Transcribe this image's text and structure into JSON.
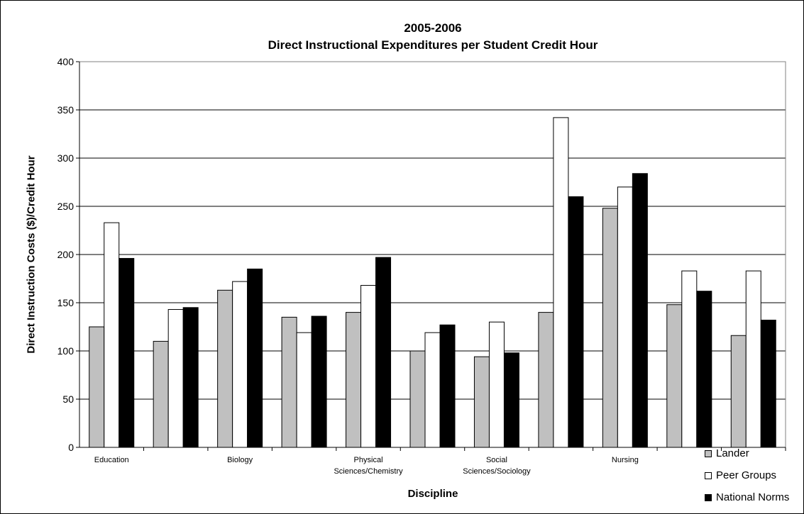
{
  "chart_data": {
    "type": "bar",
    "title_line1": "2005-2006",
    "title_line2": "Direct Instructional Expenditures per Student Credit Hour",
    "xlabel": "Discipline",
    "ylabel": "Direct Instruction Costs ($)/Credit Hour",
    "ylim": [
      0,
      400
    ],
    "yticks": [
      "0",
      "50",
      "100",
      "150",
      "200",
      "250",
      "300",
      "350",
      "400"
    ],
    "grid": true,
    "legend_position": "bottom-right",
    "categories": [
      [
        "Education"
      ],
      [
        ""
      ],
      [
        "Biology"
      ],
      [
        ""
      ],
      [
        "Physical",
        "Sciences/Chemistry"
      ],
      [
        ""
      ],
      [
        "Social",
        "Sciences/Sociology"
      ],
      [
        ""
      ],
      [
        "Nursing"
      ],
      [
        ""
      ],
      [
        ""
      ]
    ],
    "series": [
      {
        "name": "Lander",
        "color": "#c0c0c0",
        "values": [
          125,
          110,
          163,
          135,
          140,
          100,
          94,
          140,
          248,
          148,
          116
        ]
      },
      {
        "name": "Peer Groups",
        "color": "#ffffff",
        "values": [
          233,
          143,
          172,
          119,
          168,
          119,
          130,
          342,
          270,
          183,
          183
        ]
      },
      {
        "name": "National Norms",
        "color": "#000000",
        "values": [
          196,
          145,
          185,
          136,
          197,
          127,
          98,
          260,
          284,
          162,
          132
        ]
      }
    ]
  }
}
